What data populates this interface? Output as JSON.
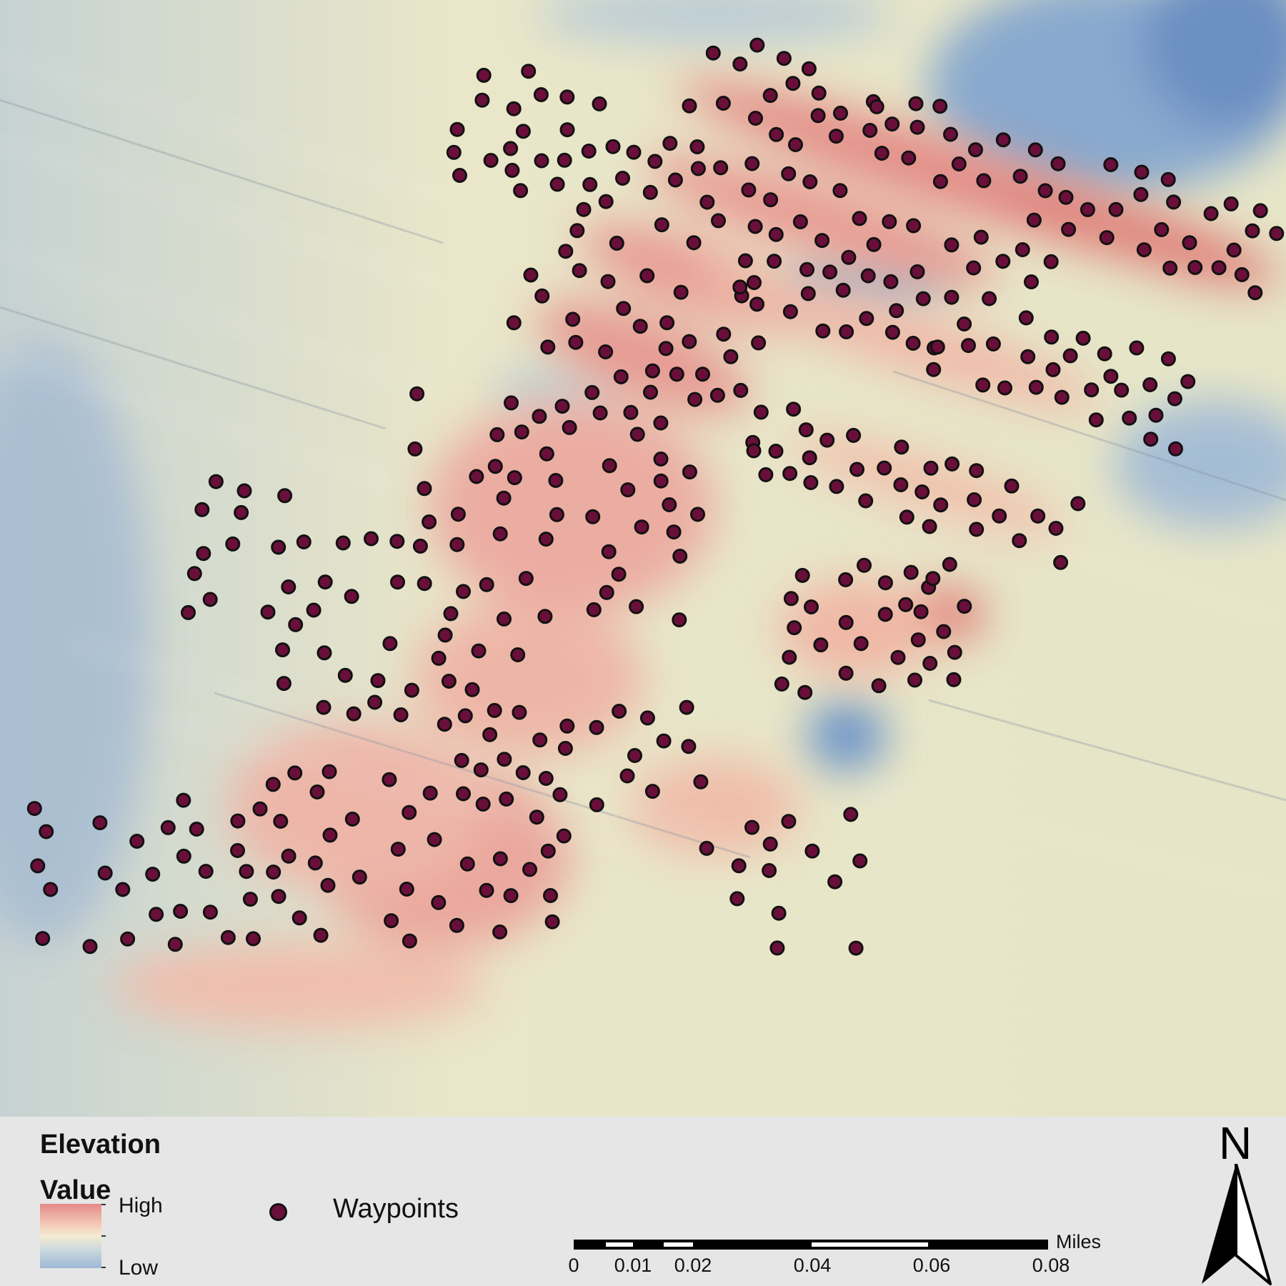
{
  "map": {
    "ramp_colors": [
      "#e48a86",
      "#f3c6b3",
      "#f5ecd2",
      "#c9d8dc",
      "#9fb7d6"
    ],
    "waypoint_fill": "#6a0f3a",
    "waypoint_count_shown": 388
  },
  "legend": {
    "layer_title": "Elevation",
    "field_title": "Value",
    "high_label": "High",
    "low_label": "Low",
    "waypoints_label": "Waypoints"
  },
  "scale_bar": {
    "unit": "Miles",
    "ticks": [
      "0",
      "0.01",
      "0.02",
      "0.04",
      "0.06",
      "0.08"
    ]
  },
  "north_arrow": {
    "label": "N",
    "icon": "north-arrow-icon"
  }
}
